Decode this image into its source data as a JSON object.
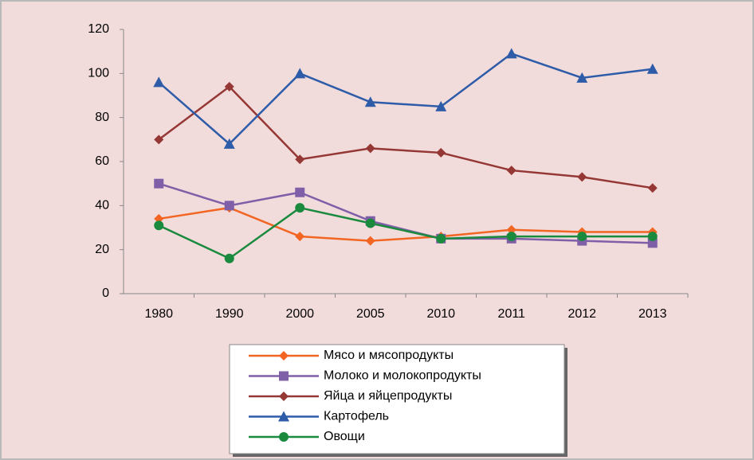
{
  "chart_data": {
    "type": "line",
    "categories": [
      "1980",
      "1990",
      "2000",
      "2005",
      "2010",
      "2011",
      "2012",
      "2013"
    ],
    "series": [
      {
        "name": "Мясо и мясопродукты",
        "color": "#f26522",
        "marker": "diamond",
        "values": [
          34,
          39,
          26,
          24,
          26,
          29,
          28,
          28
        ]
      },
      {
        "name": "Молоко и молокопродукты",
        "color": "#7f5fa8",
        "marker": "square",
        "values": [
          50,
          40,
          46,
          33,
          25,
          25,
          24,
          23
        ]
      },
      {
        "name": "Яйца и яйцепродукты",
        "color": "#953735",
        "marker": "diamond",
        "values": [
          70,
          94,
          61,
          66,
          64,
          56,
          53,
          48
        ]
      },
      {
        "name": "Картофель",
        "color": "#2e5ca8",
        "marker": "triangle",
        "values": [
          96,
          68,
          100,
          87,
          85,
          109,
          98,
          102
        ]
      },
      {
        "name": "Овощи",
        "color": "#1a8a3e",
        "marker": "circle",
        "values": [
          31,
          16,
          39,
          32,
          25,
          26,
          26,
          26
        ]
      }
    ],
    "ylim": [
      0,
      120
    ],
    "yticks": [
      0,
      20,
      40,
      60,
      80,
      100,
      120
    ],
    "grid": false,
    "legend": "bottom"
  }
}
